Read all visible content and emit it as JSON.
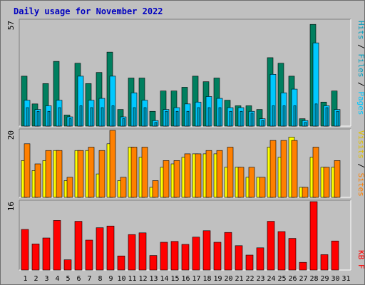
{
  "title": "Daily usage for November 2022",
  "colors": {
    "background": "#c0c0c0",
    "pages": "#007f5f",
    "files": "#00c8ff",
    "hits": "#00a0c0",
    "sites": "#ff8000",
    "visits": "#ffff00",
    "kbytes": "#ff0000",
    "weekend_day": "#008040",
    "title": "#0000c0"
  },
  "chart_data": [
    {
      "type": "bar",
      "name": "hits-files-pages",
      "categories": [
        "1",
        "2",
        "3",
        "4",
        "5",
        "6",
        "7",
        "8",
        "9",
        "10",
        "11",
        "12",
        "13",
        "14",
        "15",
        "16",
        "17",
        "18",
        "19",
        "20",
        "21",
        "22",
        "23",
        "24",
        "25",
        "26",
        "27",
        "28",
        "29",
        "30",
        "31"
      ],
      "ymax_label": "57",
      "ylim": [
        0,
        57
      ],
      "legend_parts": [
        "Pages",
        "Files",
        "Hits"
      ],
      "series": [
        {
          "name": "Pages",
          "values": [
            27,
            12,
            23,
            35,
            6,
            34,
            23,
            29,
            40,
            9,
            26,
            26,
            8,
            19,
            19,
            21,
            27,
            24,
            26,
            14,
            11,
            11,
            9,
            37,
            34,
            27,
            4,
            55,
            13,
            19,
            0
          ]
        },
        {
          "name": "Files",
          "values": [
            14,
            9,
            11,
            14,
            5,
            27,
            14,
            15,
            27,
            5,
            18,
            14,
            3,
            9,
            10,
            12,
            13,
            16,
            15,
            10,
            10,
            8,
            4,
            28,
            18,
            20,
            3,
            45,
            11,
            9,
            0
          ]
        },
        {
          "name": "Hits",
          "values": [
            10,
            8,
            8,
            10,
            4,
            11,
            10,
            10,
            11,
            4,
            10,
            10,
            2,
            8,
            8,
            8,
            10,
            10,
            10,
            8,
            8,
            7,
            3,
            11,
            11,
            11,
            2,
            12,
            10,
            8,
            0
          ]
        }
      ]
    },
    {
      "type": "bar",
      "name": "visits-sites",
      "categories": [
        "1",
        "2",
        "3",
        "4",
        "5",
        "6",
        "7",
        "8",
        "9",
        "10",
        "11",
        "12",
        "13",
        "14",
        "15",
        "16",
        "17",
        "18",
        "19",
        "20",
        "21",
        "22",
        "23",
        "24",
        "25",
        "26",
        "27",
        "28",
        "29",
        "30",
        "31"
      ],
      "ymax_label": "20",
      "ylim": [
        0,
        20
      ],
      "legend_parts": [
        "Sites",
        "Visits"
      ],
      "series": [
        {
          "name": "Visits",
          "values": [
            11,
            8,
            11,
            14,
            5,
            14,
            14,
            7,
            16,
            5,
            15,
            12,
            3,
            9,
            10,
            12,
            13,
            13,
            13,
            9,
            9,
            6,
            6,
            15,
            12,
            18,
            3,
            12,
            9,
            9,
            0
          ]
        },
        {
          "name": "Sites",
          "values": [
            16,
            10,
            14,
            14,
            6,
            14,
            15,
            14,
            20,
            6,
            15,
            15,
            5,
            11,
            11,
            13,
            13,
            14,
            14,
            15,
            9,
            9,
            6,
            17,
            17,
            17,
            3,
            15,
            9,
            11,
            0
          ]
        }
      ]
    },
    {
      "type": "bar",
      "name": "kbytes",
      "categories": [
        "1",
        "2",
        "3",
        "4",
        "5",
        "6",
        "7",
        "8",
        "9",
        "10",
        "11",
        "12",
        "13",
        "14",
        "15",
        "16",
        "17",
        "18",
        "19",
        "20",
        "21",
        "22",
        "23",
        "24",
        "25",
        "26",
        "27",
        "28",
        "29",
        "30",
        "31"
      ],
      "ymax_label": "16",
      "ylim": [
        0,
        16
      ],
      "legend_parts": [
        "KB F"
      ],
      "series": [
        {
          "name": "KB F",
          "values": [
            9.5,
            6.1,
            7.5,
            11.6,
            2.4,
            11.4,
            7.0,
            9.9,
            10.3,
            3.3,
            8.3,
            8.7,
            3.4,
            6.5,
            6.7,
            6.0,
            7.7,
            9.2,
            6.5,
            8.8,
            5.7,
            3.5,
            5.2,
            11.4,
            9.0,
            7.4,
            1.8,
            16.0,
            3.6,
            6.8,
            0
          ]
        }
      ]
    }
  ],
  "x_axis": {
    "labels": [
      "1",
      "2",
      "3",
      "4",
      "5",
      "6",
      "7",
      "8",
      "9",
      "10",
      "11",
      "12",
      "13",
      "14",
      "15",
      "16",
      "17",
      "18",
      "19",
      "20",
      "21",
      "22",
      "23",
      "24",
      "25",
      "26",
      "27",
      "28",
      "29",
      "30",
      "31"
    ],
    "weekend_days": [
      "5",
      "6",
      "12",
      "13",
      "19",
      "20",
      "26",
      "27"
    ]
  }
}
